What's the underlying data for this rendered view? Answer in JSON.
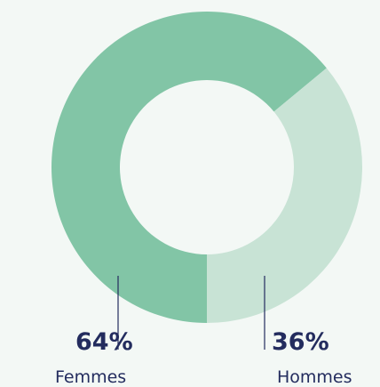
{
  "chart_data": {
    "type": "donut",
    "categories": [
      "Femmes",
      "Hommes"
    ],
    "values": [
      64,
      36
    ],
    "value_labels": [
      "64%",
      "36%"
    ],
    "colors": [
      "#82c5a6",
      "#c8e3d5"
    ]
  }
}
